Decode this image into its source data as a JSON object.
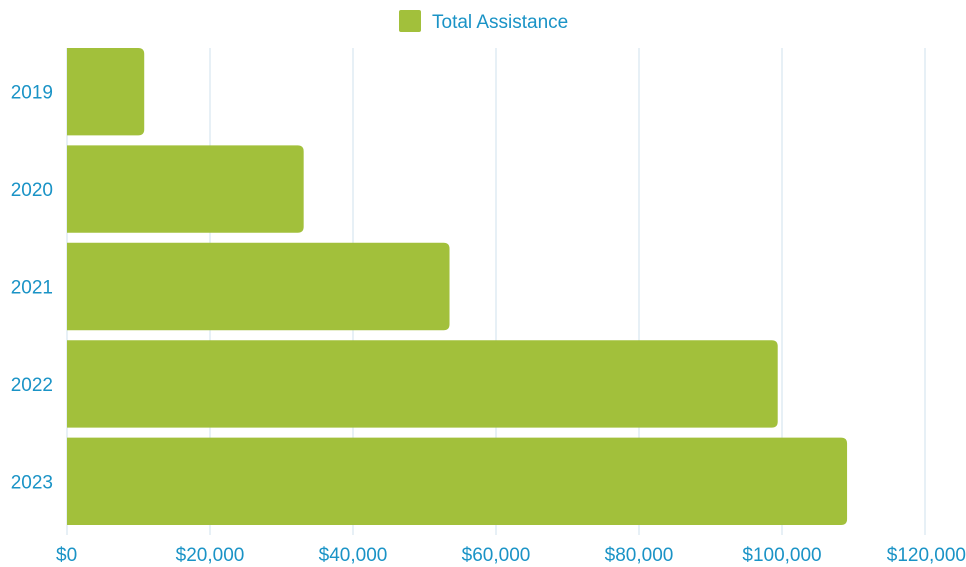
{
  "chart_data": {
    "type": "bar",
    "orientation": "horizontal",
    "categories": [
      "2019",
      "2020",
      "2021",
      "2022",
      "2023"
    ],
    "series": [
      {
        "name": "Total Assistance",
        "values": [
          10800,
          33100,
          53500,
          99400,
          109100
        ]
      }
    ],
    "title": "",
    "xlabel": "",
    "ylabel": "",
    "xlim": [
      0,
      120000
    ],
    "x_ticks": [
      {
        "value": 0,
        "label": "$0"
      },
      {
        "value": 20000,
        "label": "$20,000"
      },
      {
        "value": 40000,
        "label": "$40,000"
      },
      {
        "value": 60000,
        "label": "$60,000"
      },
      {
        "value": 80000,
        "label": "$80,000"
      },
      {
        "value": 100000,
        "label": "$100,000"
      },
      {
        "value": 120000,
        "label": "$120,000"
      }
    ],
    "grid": "vertical",
    "legend_position": "top-center"
  },
  "colors": {
    "bar": "#a2c03b",
    "text": "#1a93c6",
    "grid": "#cfe0ec"
  }
}
